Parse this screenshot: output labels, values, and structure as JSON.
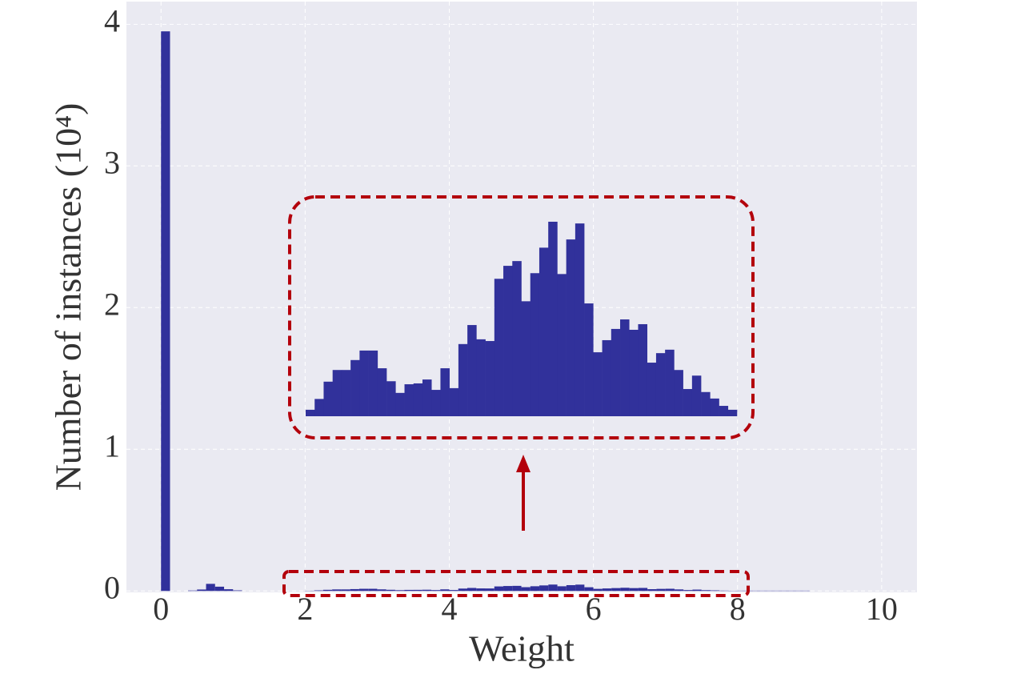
{
  "chart_data": {
    "type": "histogram",
    "x_label": "Weight",
    "y_label": "Number of instances (10⁴)",
    "bins": [
      0,
      0.125,
      0.25,
      0.375,
      0.5,
      0.625,
      0.75,
      0.875,
      1,
      1.125,
      1.25,
      1.375,
      1.5,
      1.625,
      1.75,
      1.875,
      2,
      2.125,
      2.25,
      2.375,
      2.5,
      2.625,
      2.75,
      2.875,
      3,
      3.125,
      3.25,
      3.375,
      3.5,
      3.625,
      3.75,
      3.875,
      4,
      4.125,
      4.25,
      4.375,
      4.5,
      4.625,
      4.75,
      4.875,
      5,
      5.125,
      5.25,
      5.375,
      5.5,
      5.625,
      5.75,
      5.875,
      6,
      6.125,
      6.25,
      6.375,
      6.5,
      6.625,
      6.75,
      6.875,
      7,
      7.125,
      7.25,
      7.375,
      7.5,
      7.625,
      7.75,
      7.875,
      8,
      8.125,
      8.25,
      8.375,
      8.5,
      8.625,
      8.75,
      8.875,
      9
    ],
    "values": [
      3.95,
      0,
      0,
      0.003,
      0.01,
      0.05,
      0.03,
      0.012,
      0.004,
      0,
      0,
      0,
      0,
      0,
      0,
      0,
      0.0015,
      0.004,
      0.008,
      0.0107,
      0.0107,
      0.013,
      0.0152,
      0.0152,
      0.0111,
      0.0081,
      0.0054,
      0.0074,
      0.0076,
      0.0085,
      0.0061,
      0.0111,
      0.0065,
      0.0167,
      0.0211,
      0.0178,
      0.0174,
      0.0318,
      0.0348,
      0.0359,
      0.0266,
      0.0331,
      0.039,
      0.045,
      0.0329,
      0.0409,
      0.0446,
      0.0261,
      0.0148,
      0.0176,
      0.0202,
      0.0224,
      0.02,
      0.0213,
      0.0124,
      0.0146,
      0.0154,
      0.0107,
      0.0063,
      0.0094,
      0.0056,
      0.0041,
      0.0024,
      0.0015,
      0.002,
      0.002,
      0.002,
      0.002,
      0.002,
      0.002,
      0.002,
      0.002
    ],
    "color": "#31319b",
    "xlim": [
      -0.48,
      10.49
    ],
    "xticks": [
      0,
      2,
      4,
      6,
      8,
      10
    ],
    "ylim": [
      -0.01,
      4.16
    ],
    "yticks": [
      0,
      1,
      2,
      3,
      4
    ],
    "grid": true,
    "zoom_xlim": [
      2,
      8
    ]
  }
}
